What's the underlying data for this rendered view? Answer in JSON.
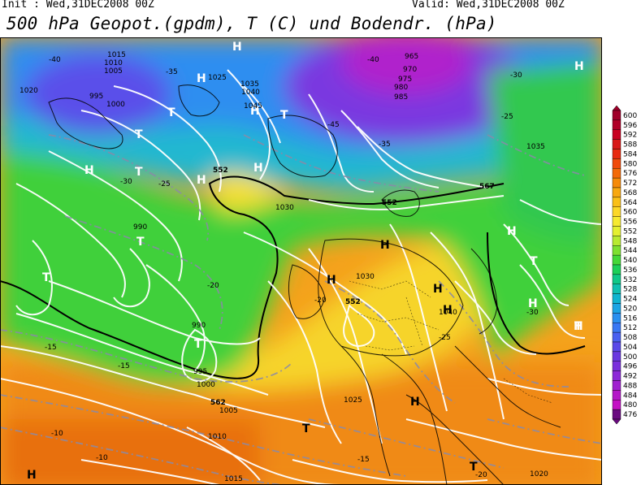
{
  "header": {
    "init": "Init : Wed,31DEC2008 00Z",
    "valid": "Valid: Wed,31DEC2008 00Z",
    "title": "500 hPa Geopot.(gpdm), T (C) und Bodendr. (hPa)"
  },
  "colorbar": {
    "labels": [
      "600",
      "596",
      "592",
      "588",
      "584",
      "580",
      "576",
      "572",
      "568",
      "564",
      "560",
      "556",
      "552",
      "548",
      "544",
      "540",
      "536",
      "532",
      "528",
      "524",
      "520",
      "516",
      "512",
      "508",
      "504",
      "500",
      "496",
      "492",
      "488",
      "484",
      "480",
      "476"
    ],
    "colors": [
      "#a0002a",
      "#b00028",
      "#c80020",
      "#d81818",
      "#e82a10",
      "#f04a0a",
      "#f36a08",
      "#f68a08",
      "#f8a810",
      "#fac018",
      "#fcd828",
      "#f6ea30",
      "#e4f030",
      "#b8ea30",
      "#7ee030",
      "#44d838",
      "#1cd058",
      "#10c888",
      "#10c0b0",
      "#10b4d0",
      "#1ca4e4",
      "#2a90f0",
      "#3a78f4",
      "#4a60f0",
      "#5a48e8",
      "#6a38e0",
      "#7a30dc",
      "#8c28d8",
      "#a020d0",
      "#b418c8",
      "#c410c4",
      "#6a0a80"
    ]
  },
  "map": {
    "highs": [
      {
        "label": "H"
      },
      {
        "label": "H"
      },
      {
        "label": "H"
      },
      {
        "label": "H"
      },
      {
        "label": "H"
      },
      {
        "label": "H"
      },
      {
        "label": "H"
      },
      {
        "label": "H"
      },
      {
        "label": "H"
      },
      {
        "label": "H"
      },
      {
        "label": "H"
      },
      {
        "label": "H"
      },
      {
        "label": "H"
      },
      {
        "label": "H"
      },
      {
        "label": "H"
      },
      {
        "label": "H"
      }
    ],
    "lows": [
      {
        "label": "T"
      },
      {
        "label": "T"
      },
      {
        "label": "T"
      },
      {
        "label": "T"
      },
      {
        "label": "T"
      },
      {
        "label": "T"
      },
      {
        "label": "T"
      },
      {
        "label": "T"
      },
      {
        "label": "T"
      },
      {
        "label": "T"
      },
      {
        "label": "T"
      }
    ],
    "pressure_labels": [
      "1015",
      "1010",
      "1005",
      "1000",
      "995",
      "990",
      "985",
      "980",
      "975",
      "970",
      "965",
      "1020",
      "1025",
      "1030",
      "1035",
      "1040",
      "1045",
      "1030",
      "1035",
      "1040",
      "1025",
      "1020",
      "1015",
      "1010",
      "1005",
      "1000",
      "995",
      "990"
    ],
    "temp_labels": [
      "-40",
      "-35",
      "-30",
      "-25",
      "-20",
      "-15",
      "-10",
      "-45",
      "-40",
      "-35",
      "-30",
      "-25",
      "-20",
      "-15",
      "-10",
      "-15",
      "-25",
      "-30",
      "-20"
    ],
    "geopot_labels": [
      "552",
      "552",
      "567",
      "562",
      "552"
    ]
  }
}
